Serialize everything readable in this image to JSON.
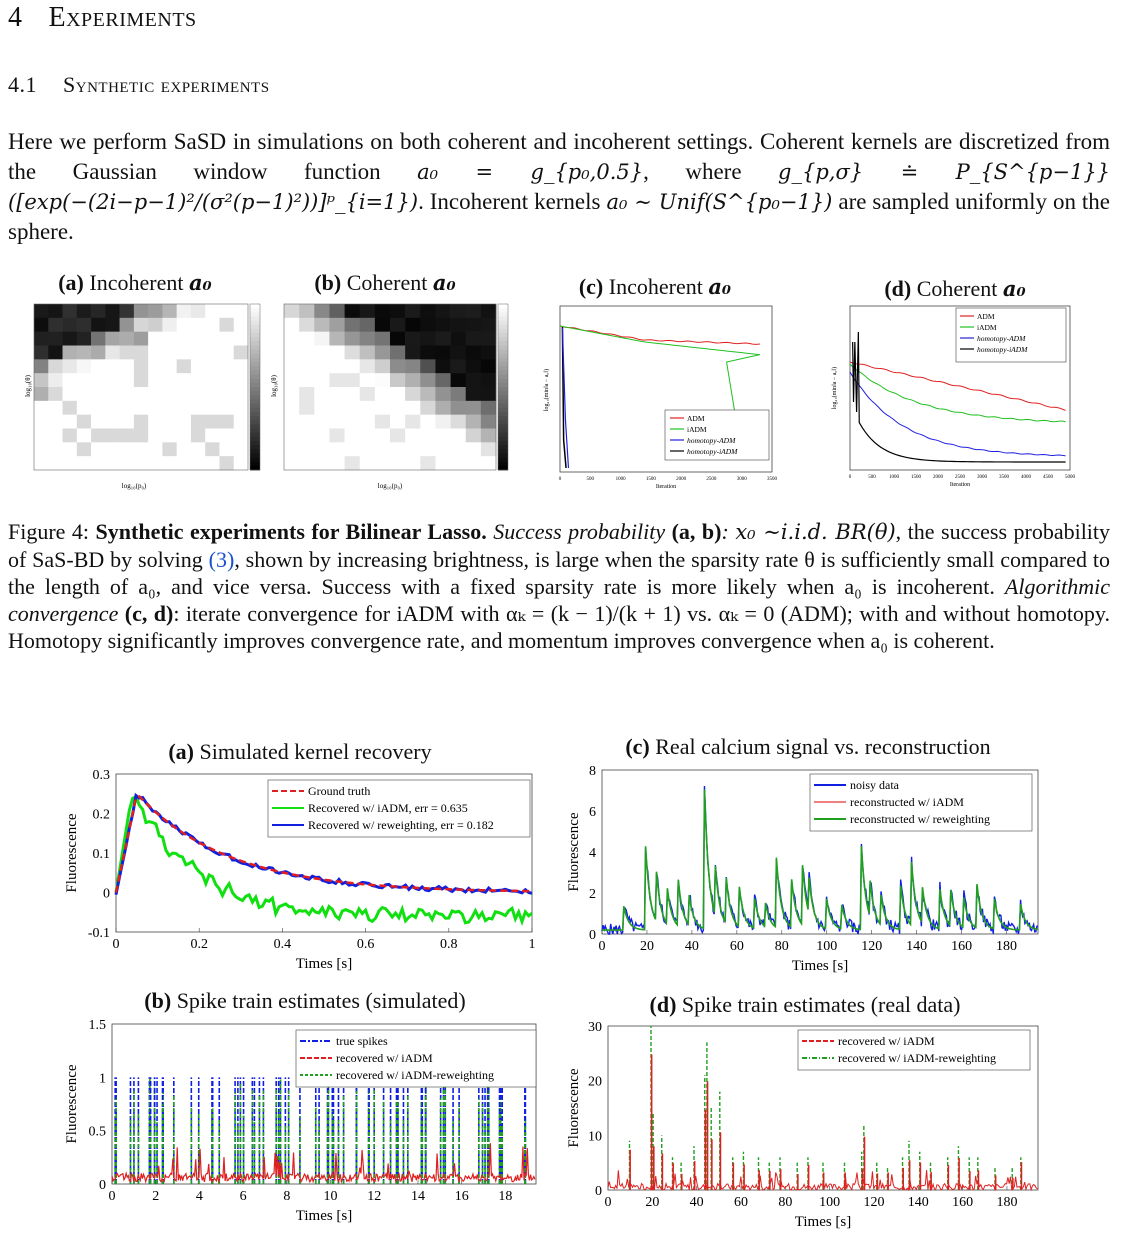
{
  "section": {
    "number": "4",
    "title": "Experiments"
  },
  "subsection": {
    "number": "4.1",
    "title": "Synthetic experiments"
  },
  "paragraph": {
    "s1": "Here we perform SaSD in simulations on both coherent and incoherent settings. Coherent kernels are discretized from the Gaussian window function",
    "m1": "a₀ = g_{p₀,0.5}",
    "s2": ", where",
    "m2": "g_{p,σ} ≐ P_{S^{p−1}}([exp(−(2i−p−1)²/(σ²(p−1)²))]ᵖ_{i=1})",
    "s3": ". Incoherent kernels",
    "m3": "a₀ ∼ Unif(S^{p₀−1})",
    "s4": "are sampled uniformly on the sphere."
  },
  "fig4": {
    "panels": [
      {
        "tag": "(a)",
        "text": "Incoherent",
        "sym": "a₀"
      },
      {
        "tag": "(b)",
        "text": "Coherent",
        "sym": "a₀"
      },
      {
        "tag": "(c)",
        "text": "Incoherent",
        "sym": "a₀"
      },
      {
        "tag": "(d)",
        "text": "Coherent",
        "sym": "a₀"
      }
    ],
    "heat_xlabel": "log₁₀(p₀)",
    "heat_ylabel": "log₁₀(θ)",
    "conv_xlabel": "Iteration",
    "conv_ylabel": "log₁₀(min‖a − a₀‖)",
    "legend_c": [
      "ADM",
      "iADM",
      "homotopy-ADM",
      "homotopy-iADM"
    ],
    "legend_d": [
      "ADM",
      "iADM",
      "homotopy-ADM",
      "homotopy-iADM"
    ],
    "caption": {
      "label": "Figure 4:",
      "bold": "Synthetic experiments for Bilinear Lasso.",
      "sp_it": "Success probability",
      "sp_tag": "(a, b)",
      "sp_math": "x₀ ∼i.i.d. BR(θ)",
      "t1": ", the success probability of SaS-BD by solving",
      "ref": "(3)",
      "t2": ", shown by increasing brightness, is large when the sparsity rate θ is sufficiently small compared to the length of a₀, and vice versa. Success with a fixed sparsity rate is more likely when a₀ is incoherent.",
      "ac_it": "Algorithmic convergence",
      "ac_tag": "(c, d)",
      "t3": ": iterate convergence for iADM with αₖ = (k − 1)/(k + 1) vs. αₖ = 0 (ADM); with and without homotopy. Homotopy significantly improves convergence rate, and momentum improves convergence when a₀ is coherent."
    }
  },
  "fig5": {
    "a": {
      "tag": "(a)",
      "title": "Simulated kernel recovery",
      "xlabel": "Times [s]",
      "ylabel": "Fluorescence",
      "legend": [
        "Ground truth",
        "Recovered w/ iADM, err = 0.635",
        "Recovered w/ reweighting, err = 0.182"
      ],
      "xticks": [
        "0",
        "0.2",
        "0.4",
        "0.6",
        "0.8",
        "1"
      ],
      "yticks": [
        "0.3",
        "0.2",
        "0.1",
        "0",
        "-0.1"
      ]
    },
    "b": {
      "tag": "(b)",
      "title": "Spike train estimates (simulated)",
      "xlabel": "Times [s]",
      "ylabel": "Fluorescence",
      "legend": [
        "true spikes",
        "recovered w/ iADM",
        "recovered w/ iADM-reweighting"
      ],
      "xticks": [
        "0",
        "2",
        "4",
        "6",
        "8",
        "10",
        "12",
        "14",
        "16",
        "18"
      ],
      "yticks": [
        "1.5",
        "1",
        "0.5",
        "0"
      ]
    },
    "c": {
      "tag": "(c)",
      "title": "Real calcium signal vs. reconstruction",
      "xlabel": "Times [s]",
      "ylabel": "Fluorescence",
      "legend": [
        "noisy data",
        "reconstructed w/ iADM",
        "reconstructed w/ reweighting"
      ],
      "xticks": [
        "0",
        "20",
        "40",
        "60",
        "80",
        "100",
        "120",
        "140",
        "160",
        "180"
      ],
      "yticks": [
        "8",
        "6",
        "4",
        "2",
        "0"
      ]
    },
    "d": {
      "tag": "(d)",
      "title": "Spike train estimates (real data)",
      "xlabel": "Times [s]",
      "ylabel": "Fluorescence",
      "legend": [
        "recovered w/ iADM",
        "recovered w/ iADM-reweighting"
      ],
      "xticks": [
        "0",
        "20",
        "40",
        "60",
        "80",
        "100",
        "120",
        "140",
        "160",
        "180"
      ],
      "yticks": [
        "30",
        "20",
        "10",
        "0"
      ]
    }
  },
  "chart_data": [
    {
      "type": "heatmap",
      "title": "(a) Incoherent a₀",
      "xlabel": "log₁₀(p₀)",
      "ylabel": "log₁₀(θ)",
      "colormap": "gray",
      "description_of_values": "brightness = success probability"
    },
    {
      "type": "heatmap",
      "title": "(b) Coherent a₀",
      "xlabel": "log₁₀(p₀)",
      "ylabel": "log₁₀(θ)",
      "colormap": "gray"
    },
    {
      "type": "line",
      "title": "(c) Incoherent a₀",
      "xlabel": "Iteration",
      "xlim": [
        0,
        3500
      ],
      "series": [
        {
          "name": "ADM",
          "color": "#e02020"
        },
        {
          "name": "iADM",
          "color": "#20c020"
        },
        {
          "name": "homotopy-ADM",
          "color": "#2020e0"
        },
        {
          "name": "homotopy-iADM",
          "color": "#000000"
        }
      ]
    },
    {
      "type": "line",
      "title": "(d) Coherent a₀",
      "xlabel": "Iteration",
      "xlim": [
        0,
        5000
      ],
      "series": [
        {
          "name": "ADM",
          "color": "#e02020"
        },
        {
          "name": "iADM",
          "color": "#20c020"
        },
        {
          "name": "homotopy-ADM",
          "color": "#2020e0"
        },
        {
          "name": "homotopy-iADM",
          "color": "#000000"
        }
      ]
    },
    {
      "type": "line",
      "title": "(a) Simulated kernel recovery",
      "xlabel": "Times [s]",
      "ylabel": "Fluorescence",
      "xlim": [
        0,
        1
      ],
      "ylim": [
        -0.1,
        0.3
      ],
      "series": [
        {
          "name": "Ground truth",
          "color": "#e02020"
        },
        {
          "name": "Recovered w/ iADM, err = 0.635",
          "color": "#10e010"
        },
        {
          "name": "Recovered w/ reweighting, err = 0.182",
          "color": "#1020e0"
        }
      ]
    },
    {
      "type": "bar",
      "title": "(b) Spike train estimates (simulated)",
      "xlabel": "Times [s]",
      "ylabel": "Fluorescence",
      "xlim": [
        0,
        19.5
      ],
      "ylim": [
        0,
        1.5
      ],
      "series": [
        {
          "name": "true spikes",
          "color": "#1020e0"
        },
        {
          "name": "recovered w/ iADM",
          "color": "#e02020"
        },
        {
          "name": "recovered w/ iADM-reweighting",
          "color": "#20a020"
        }
      ]
    },
    {
      "type": "line",
      "title": "(c) Real calcium signal vs. reconstruction",
      "xlabel": "Times [s]",
      "ylabel": "Fluorescence",
      "xlim": [
        0,
        200
      ],
      "ylim": [
        0,
        8
      ],
      "series": [
        {
          "name": "noisy data",
          "color": "#1020e0"
        },
        {
          "name": "reconstructed w/ iADM",
          "color": "#f08080"
        },
        {
          "name": "reconstructed w/ reweighting",
          "color": "#20a020"
        }
      ]
    },
    {
      "type": "bar",
      "title": "(d) Spike train estimates (real data)",
      "xlabel": "Times [s]",
      "ylabel": "Fluorescence",
      "xlim": [
        0,
        200
      ],
      "ylim": [
        0,
        30
      ],
      "series": [
        {
          "name": "recovered w/ iADM",
          "color": "#e02020"
        },
        {
          "name": "recovered w/ iADM-reweighting",
          "color": "#20a020"
        }
      ]
    }
  ]
}
